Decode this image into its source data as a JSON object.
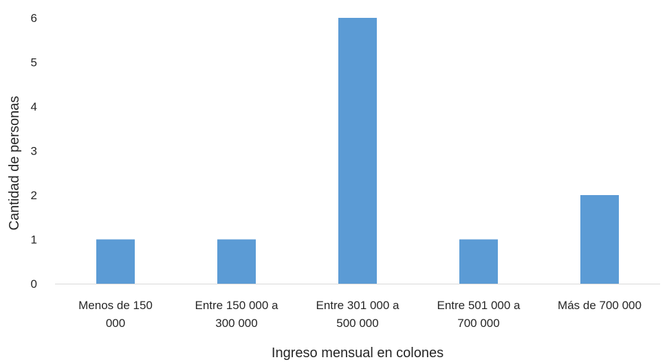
{
  "chart_data": {
    "type": "bar",
    "title": "",
    "xlabel": "Ingreso mensual en colones",
    "ylabel": "Cantidad de personas",
    "ylim": [
      0,
      6
    ],
    "yticks": [
      0,
      1,
      2,
      3,
      4,
      5,
      6
    ],
    "grid": false,
    "legend": "none",
    "bar_color": "#5b9bd5",
    "categories": [
      [
        "Menos de 150",
        "000"
      ],
      [
        "Entre 150 000 a",
        "300 000"
      ],
      [
        "Entre 301 000 a",
        "500 000"
      ],
      [
        "Entre 501 000 a",
        "700 000"
      ],
      [
        "Más de 700 000"
      ]
    ],
    "values": [
      1,
      1,
      6,
      1,
      2
    ]
  }
}
